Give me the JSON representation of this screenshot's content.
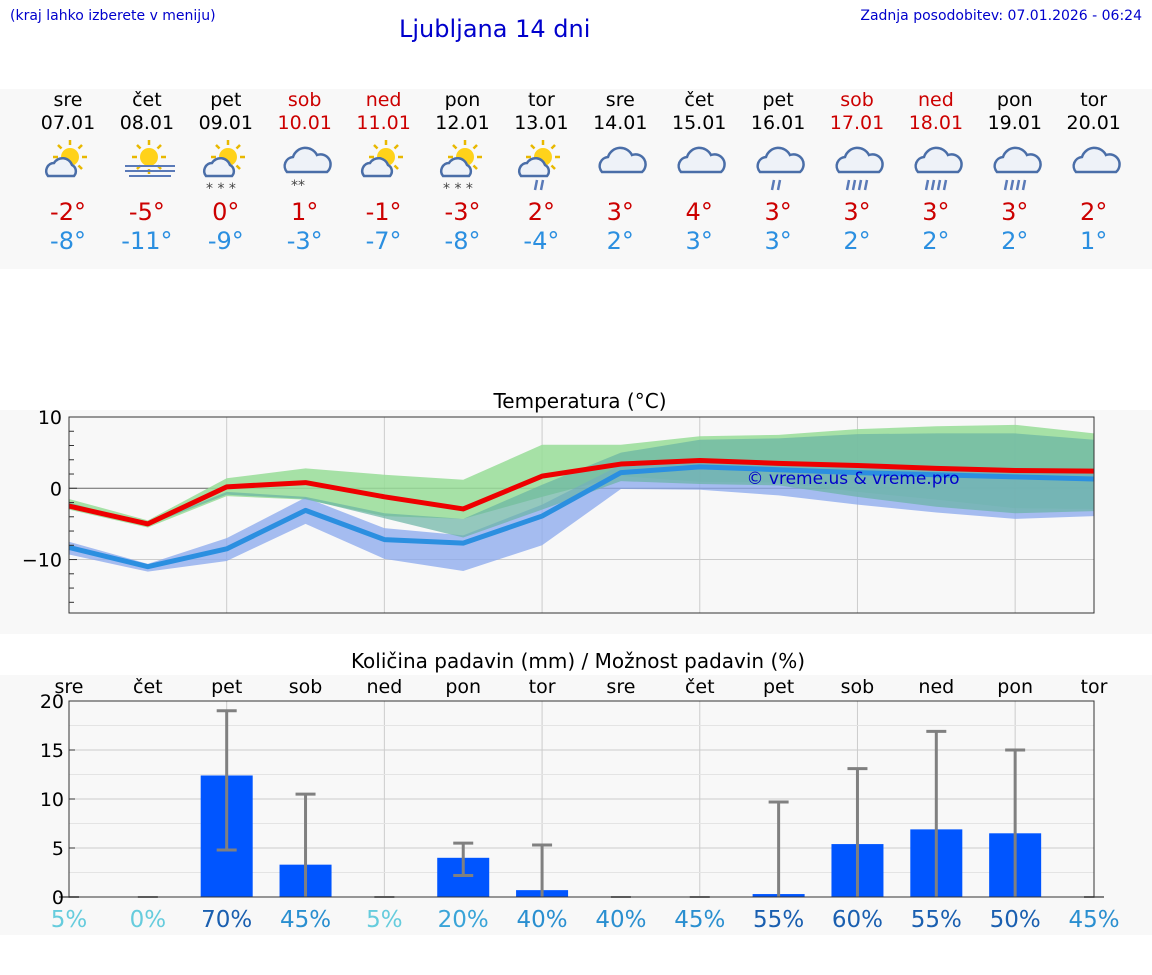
{
  "header": {
    "hint": "(kraj lahko izberete v meniju)",
    "title": "Ljubljana 14 dni",
    "updated": "Zadnja posodobitev: 07.01.2026 - 06:24"
  },
  "colors": {
    "header_text": "#0000cc",
    "weekend": "#cc0000",
    "max_temp": "#cc0000",
    "min_temp": "#2b8fe0",
    "bar": "#0055ff"
  },
  "days": [
    {
      "name": "sre",
      "date": "07.01",
      "weekend": false,
      "max": "-2°",
      "min": "-8°",
      "icon": "sun-cloud-icon"
    },
    {
      "name": "čet",
      "date": "08.01",
      "weekend": false,
      "max": "-5°",
      "min": "-11°",
      "icon": "sun-fog-icon"
    },
    {
      "name": "pet",
      "date": "09.01",
      "weekend": false,
      "max": "0°",
      "min": "-9°",
      "icon": "sun-cloud-snow-icon"
    },
    {
      "name": "sob",
      "date": "10.01",
      "weekend": true,
      "max": "1°",
      "min": "-3°",
      "icon": "cloud-snow-icon"
    },
    {
      "name": "ned",
      "date": "11.01",
      "weekend": true,
      "max": "-1°",
      "min": "-7°",
      "icon": "sun-cloud-icon"
    },
    {
      "name": "pon",
      "date": "12.01",
      "weekend": false,
      "max": "-3°",
      "min": "-8°",
      "icon": "sun-cloud-snow-icon"
    },
    {
      "name": "tor",
      "date": "13.01",
      "weekend": false,
      "max": "2°",
      "min": "-4°",
      "icon": "sun-cloud-rain-icon"
    },
    {
      "name": "sre",
      "date": "14.01",
      "weekend": false,
      "max": "3°",
      "min": "2°",
      "icon": "cloud-icon"
    },
    {
      "name": "čet",
      "date": "15.01",
      "weekend": false,
      "max": "4°",
      "min": "3°",
      "icon": "cloud-icon"
    },
    {
      "name": "pet",
      "date": "16.01",
      "weekend": false,
      "max": "3°",
      "min": "3°",
      "icon": "cloud-rain-icon"
    },
    {
      "name": "sob",
      "date": "17.01",
      "weekend": true,
      "max": "3°",
      "min": "2°",
      "icon": "cloud-heavy-rain-icon"
    },
    {
      "name": "ned",
      "date": "18.01",
      "weekend": true,
      "max": "3°",
      "min": "2°",
      "icon": "cloud-heavy-rain-icon"
    },
    {
      "name": "pon",
      "date": "19.01",
      "weekend": false,
      "max": "3°",
      "min": "2°",
      "icon": "cloud-heavy-rain-icon"
    },
    {
      "name": "tor",
      "date": "20.01",
      "weekend": false,
      "max": "2°",
      "min": "1°",
      "icon": "cloud-icon"
    }
  ],
  "chart_data": [
    {
      "type": "line",
      "title": "Temperatura (°C)",
      "watermark": "© vreme.us & vreme.pro",
      "ylim": [
        -17.5,
        10
      ],
      "yticks": [
        10,
        0,
        -10
      ],
      "ytick_labels": [
        "10",
        "0",
        "−10"
      ],
      "grid": true,
      "x": [
        0,
        1,
        2,
        3,
        4,
        5,
        6,
        7,
        8,
        9,
        10,
        11,
        12,
        13
      ],
      "series": [
        {
          "values": [
            -2.5,
            -5,
            0.2,
            0.8,
            -1.2,
            -2.9,
            1.7,
            3.4,
            3.9,
            3.5,
            3.2,
            2.8,
            2.5,
            2.4
          ],
          "color": "#ee0000"
        },
        {
          "values": [
            -8.3,
            -11,
            -8.5,
            -3.1,
            -7.2,
            -7.7,
            -3.9,
            2.2,
            3.0,
            2.6,
            2.2,
            1.9,
            1.6,
            1.3
          ],
          "color": "#2b8fe0"
        }
      ],
      "bands": [
        {
          "color": "#98dd98",
          "opacity": 0.85,
          "upper": [
            -1.5,
            -4.5,
            1.4,
            2.8,
            1.9,
            1.2,
            6.1,
            6.1,
            7.3,
            7.5,
            8.3,
            8.7,
            8.9,
            7.7
          ],
          "lower": [
            -3,
            -5.5,
            -1.1,
            -1.6,
            -3.9,
            -4.3,
            -1.2,
            1.7,
            0.9,
            0.8,
            -0.5,
            -1.6,
            -2.8,
            -2.9
          ]
        },
        {
          "color": "#8aa8ee",
          "opacity": 0.75,
          "upper": [
            -7.5,
            -10.6,
            -7,
            -1.3,
            -5.6,
            -6.6,
            -2.3,
            3.3,
            3.6,
            3.2,
            2.9,
            2.6,
            2.3,
            2.0
          ],
          "lower": [
            -9.3,
            -11.7,
            -10.2,
            -5.0,
            -9.9,
            -11.6,
            -8.0,
            -0.1,
            -0.2,
            -1.0,
            -2.3,
            -3.4,
            -4.3,
            -3.9
          ]
        },
        {
          "color": "#6ab4a4",
          "opacity": 0.7,
          "upper": [
            -2,
            -5,
            -0.5,
            -1.2,
            -3.5,
            -4.3,
            0.5,
            5.0,
            6.8,
            7.0,
            7.6,
            7.7,
            7.7,
            6.8
          ],
          "lower": [
            -2.6,
            -5.2,
            -0.9,
            -1.5,
            -4.2,
            -6.9,
            -3.0,
            1.0,
            0.6,
            0.4,
            -1.2,
            -2.6,
            -3.5,
            -3.2
          ]
        }
      ]
    },
    {
      "type": "bar",
      "title": "Količina padavin (mm) / Možnost padavin (%)",
      "categories": [
        "sre",
        "čet",
        "pet",
        "sob",
        "ned",
        "pon",
        "tor",
        "sre",
        "čet",
        "pet",
        "sob",
        "ned",
        "pon",
        "tor"
      ],
      "values": [
        0,
        0,
        12.4,
        3.3,
        0,
        4,
        0.7,
        0,
        0,
        0.3,
        5.4,
        6.9,
        6.5,
        0
      ],
      "error_low": [
        0,
        0,
        4.8,
        0,
        0,
        2.2,
        0,
        0,
        0,
        0,
        0,
        0,
        0,
        0
      ],
      "error_high": [
        0,
        0,
        19,
        10.5,
        0,
        5.5,
        5.3,
        0,
        0,
        9.7,
        13.1,
        16.9,
        15,
        0
      ],
      "probability_labels": [
        "5%",
        "0%",
        "70%",
        "45%",
        "5%",
        "20%",
        "40%",
        "40%",
        "45%",
        "55%",
        "60%",
        "55%",
        "50%",
        "45%"
      ],
      "probability_colors": [
        "#66ccdd",
        "#66ccdd",
        "#1a5fb0",
        "#2a8fd0",
        "#66ccdd",
        "#3aa4d8",
        "#2a8fd0",
        "#2a8fd0",
        "#2a8fd0",
        "#1a5fb0",
        "#1a5fb0",
        "#1a5fb0",
        "#1a5fb0",
        "#2a8fd0"
      ],
      "ylim": [
        0,
        20
      ],
      "yticks": [
        0,
        5,
        10,
        15,
        20
      ],
      "grid": true,
      "bar_color": "#0055ff"
    }
  ]
}
